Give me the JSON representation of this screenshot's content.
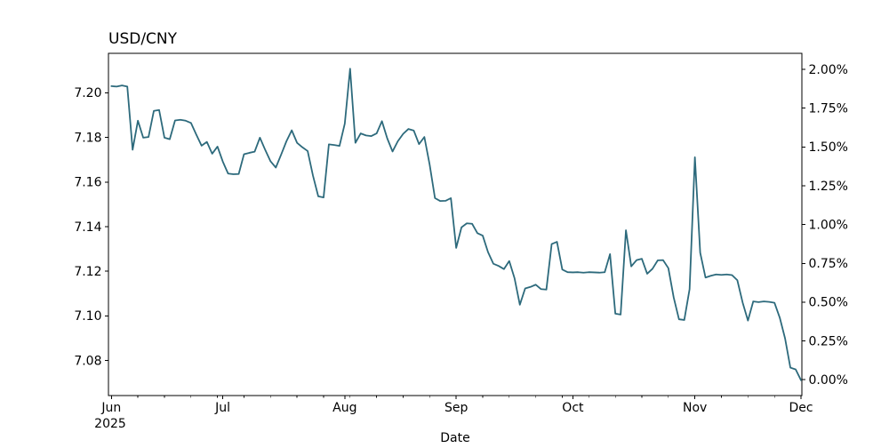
{
  "chart_data": {
    "type": "line",
    "title": "USD/CNY",
    "xlabel": "Date",
    "x_year_label": "2025",
    "x_range": "Jun 2025 - Dec 2025",
    "x_major_ticks": [
      {
        "label": "Jun",
        "i": 0
      },
      {
        "label": "Jul",
        "i": 21
      },
      {
        "label": "Aug",
        "i": 44
      },
      {
        "label": "Sep",
        "i": 65
      },
      {
        "label": "Oct",
        "i": 87
      },
      {
        "label": "Nov",
        "i": 110
      },
      {
        "label": "Dec",
        "i": 130
      }
    ],
    "x_minor_tick_i": [
      5,
      10,
      15,
      20,
      25,
      30,
      35,
      40,
      45,
      50,
      55,
      60,
      70,
      75,
      80,
      85,
      90,
      95,
      100,
      105,
      115,
      120,
      125
    ],
    "y_left_ticks": [
      7.08,
      7.1,
      7.12,
      7.14,
      7.16,
      7.18,
      7.2
    ],
    "y_right_ticks": [
      "0.00%",
      "0.25%",
      "0.50%",
      "0.75%",
      "1.00%",
      "1.25%",
      "1.50%",
      "1.75%",
      "2.00%"
    ],
    "ylim": [
      7.0643,
      7.2177
    ],
    "grid": false,
    "legend": "none",
    "line_color": "#2d6a7c",
    "axis_color": "#000000",
    "series": [
      {
        "name": "USD/CNY",
        "values": [
          7.203,
          7.2028,
          7.2033,
          7.2028,
          7.1745,
          7.1875,
          7.1799,
          7.1802,
          7.1919,
          7.1923,
          7.1799,
          7.1792,
          7.1876,
          7.1879,
          7.1875,
          7.1865,
          7.1813,
          7.1763,
          7.178,
          7.1727,
          7.1759,
          7.1692,
          7.1638,
          7.1635,
          7.1636,
          7.1725,
          7.1731,
          7.1736,
          7.1799,
          7.1744,
          7.1693,
          7.1665,
          7.1723,
          7.1783,
          7.1832,
          7.1776,
          7.1756,
          7.1739,
          7.1629,
          7.1536,
          7.1531,
          7.1769,
          7.1766,
          7.1762,
          7.1862,
          7.2108,
          7.1776,
          7.1818,
          7.1809,
          7.1806,
          7.1818,
          7.1873,
          7.1796,
          7.1737,
          7.1783,
          7.1816,
          7.1838,
          7.1831,
          7.177,
          7.1802,
          7.1678,
          7.1528,
          7.1515,
          7.1516,
          7.1528,
          7.1305,
          7.1397,
          7.1415,
          7.1413,
          7.1371,
          7.136,
          7.1286,
          7.1234,
          7.1224,
          7.121,
          7.1246,
          7.1169,
          7.105,
          7.1123,
          7.113,
          7.114,
          7.112,
          7.1118,
          7.1322,
          7.1332,
          7.1208,
          7.1196,
          7.1195,
          7.1196,
          7.1194,
          7.1196,
          7.1195,
          7.1194,
          7.1196,
          7.1277,
          7.101,
          7.1006,
          7.1384,
          7.1222,
          7.125,
          7.1256,
          7.1189,
          7.1211,
          7.1249,
          7.125,
          7.1214,
          7.1083,
          7.0985,
          7.0982,
          7.112,
          7.1711,
          7.1283,
          7.1172,
          7.118,
          7.1186,
          7.1184,
          7.1186,
          7.1183,
          7.116,
          7.106,
          7.0979,
          7.1065,
          7.1062,
          7.1065,
          7.1063,
          7.1059,
          7.0992,
          7.0899,
          7.0768,
          7.076,
          7.0712
        ]
      }
    ]
  }
}
